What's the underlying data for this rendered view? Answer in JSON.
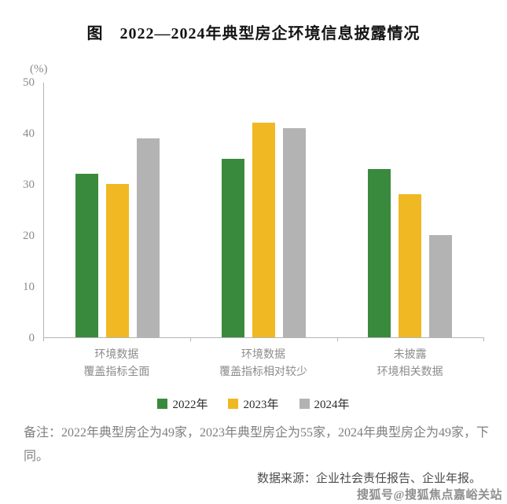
{
  "title": "图　2022—2024年典型房企环境信息披露情况",
  "chart_data": {
    "type": "bar",
    "title": "图　2022—2024年典型房企环境信息披露情况",
    "unit_label": "(%)",
    "categories": [
      "环境数据\n覆盖指标全面",
      "环境数据\n覆盖指标相对较少",
      "未披露\n环境相关数据"
    ],
    "series": [
      {
        "name": "2022年",
        "color": "#3a8a3d",
        "values": [
          32,
          35,
          33
        ]
      },
      {
        "name": "2023年",
        "color": "#f0b822",
        "values": [
          30,
          42,
          28
        ]
      },
      {
        "name": "2024年",
        "color": "#b3b3b3",
        "values": [
          39,
          41,
          20
        ]
      }
    ],
    "ylabel": "(%)",
    "ylim": [
      0,
      50
    ],
    "yticks": [
      0,
      10,
      20,
      30,
      40,
      50
    ],
    "grid": false,
    "legend_position": "bottom"
  },
  "note": "备注：2022年典型房企为49家，2023年典型房企为55家，2024年典型房企为49家，下同。",
  "source": "数据来源：企业社会责任报告、企业年报。",
  "watermark": "搜狐号@搜狐焦点嘉峪关站"
}
